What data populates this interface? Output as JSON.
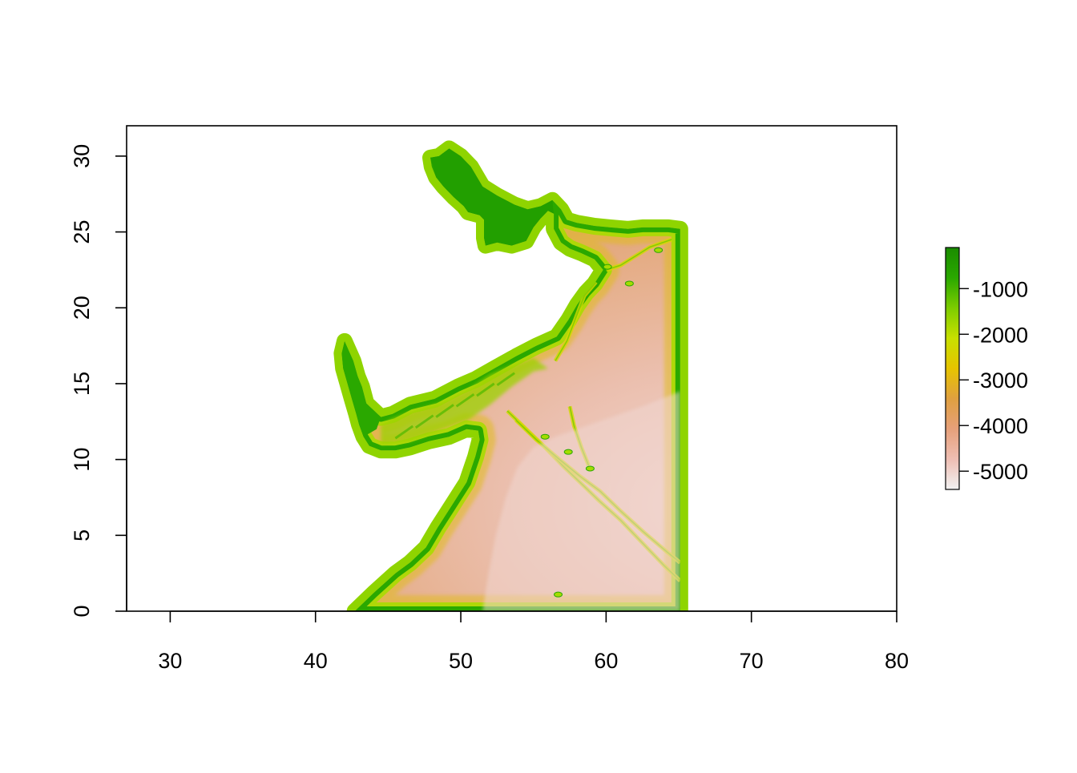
{
  "chart_data": {
    "type": "heatmap",
    "title": "",
    "xlabel": "",
    "ylabel": "",
    "xlim": [
      27,
      80
    ],
    "ylim": [
      0,
      32
    ],
    "x_ticks": [
      30,
      40,
      50,
      60,
      70,
      80
    ],
    "y_ticks": [
      0,
      5,
      10,
      15,
      20,
      25,
      30
    ],
    "raster_extent": {
      "xmin": 42.7,
      "xmax": 65.1,
      "ymin": 0,
      "ymax": 30.5
    },
    "legend": {
      "position": "right",
      "ticks": [
        -1000,
        -2000,
        -3000,
        -4000,
        -5000
      ],
      "range": [
        -5400,
        -100
      ],
      "palette": [
        "#f2f2f2",
        "#eebeb3",
        "#e6a07a",
        "#e0a040",
        "#e6c400",
        "#c8e000",
        "#7dcc00",
        "#2aa800",
        "#1a8c00"
      ]
    },
    "water_body_outline": [
      [
        42.7,
        0
      ],
      [
        44.0,
        1.2
      ],
      [
        45.5,
        2.5
      ],
      [
        46.5,
        3.2
      ],
      [
        47.6,
        4.2
      ],
      [
        48.4,
        5.5
      ],
      [
        49.4,
        7.0
      ],
      [
        50.4,
        8.5
      ],
      [
        51.0,
        10.2
      ],
      [
        51.3,
        11.3
      ],
      [
        51.2,
        11.9
      ],
      [
        50.4,
        12.0
      ],
      [
        49.2,
        11.5
      ],
      [
        47.8,
        11.2
      ],
      [
        46.5,
        10.8
      ],
      [
        45.5,
        10.6
      ],
      [
        44.5,
        10.6
      ],
      [
        43.7,
        10.9
      ],
      [
        43.3,
        11.5
      ],
      [
        43.0,
        12.3
      ],
      [
        42.8,
        13.0
      ],
      [
        42.5,
        14.0
      ],
      [
        42.2,
        15.0
      ],
      [
        41.9,
        16.0
      ],
      [
        41.8,
        17.0
      ],
      [
        42.0,
        17.8
      ],
      [
        42.6,
        16.5
      ],
      [
        42.9,
        15.5
      ],
      [
        43.2,
        14.8
      ],
      [
        43.5,
        13.7
      ],
      [
        44.5,
        12.8
      ],
      [
        45.3,
        13.0
      ],
      [
        46.5,
        13.6
      ],
      [
        48.2,
        14.0
      ],
      [
        49.8,
        14.8
      ],
      [
        51.0,
        15.3
      ],
      [
        52.3,
        16.0
      ],
      [
        53.8,
        16.8
      ],
      [
        55.2,
        17.5
      ],
      [
        56.6,
        18.1
      ],
      [
        57.4,
        19.2
      ],
      [
        58.0,
        20.2
      ],
      [
        58.6,
        21.0
      ],
      [
        59.2,
        21.6
      ],
      [
        59.8,
        22.5
      ],
      [
        59.2,
        23.2
      ],
      [
        58.3,
        23.6
      ],
      [
        57.5,
        23.9
      ],
      [
        56.9,
        24.3
      ],
      [
        56.4,
        25.2
      ],
      [
        56.4,
        26.2
      ],
      [
        56.0,
        26.4
      ],
      [
        55.5,
        25.9
      ],
      [
        55.0,
        25.3
      ],
      [
        54.5,
        24.4
      ],
      [
        53.5,
        24.1
      ],
      [
        52.5,
        24.3
      ],
      [
        51.7,
        24.1
      ],
      [
        51.6,
        24.6
      ],
      [
        51.6,
        25.8
      ],
      [
        51.3,
        26.1
      ],
      [
        50.5,
        26.3
      ],
      [
        50.2,
        26.7
      ],
      [
        49.5,
        27.3
      ],
      [
        48.8,
        28.0
      ],
      [
        48.3,
        28.6
      ],
      [
        48.0,
        29.3
      ],
      [
        47.9,
        29.9
      ],
      [
        48.5,
        30.0
      ],
      [
        49.2,
        30.5
      ],
      [
        50.0,
        30.0
      ],
      [
        50.7,
        29.3
      ],
      [
        51.5,
        28.0
      ],
      [
        52.5,
        27.4
      ],
      [
        53.7,
        26.8
      ],
      [
        54.6,
        26.5
      ],
      [
        55.5,
        26.7
      ],
      [
        56.3,
        27.1
      ],
      [
        56.9,
        26.5
      ],
      [
        57.3,
        25.8
      ],
      [
        58.0,
        25.6
      ],
      [
        59.2,
        25.4
      ],
      [
        60.3,
        25.3
      ],
      [
        61.5,
        25.2
      ],
      [
        62.5,
        25.3
      ],
      [
        63.5,
        25.3
      ],
      [
        64.3,
        25.3
      ],
      [
        65.1,
        25.2
      ],
      [
        65.1,
        0
      ]
    ],
    "basin_path": [
      [
        51.5,
        0
      ],
      [
        51.9,
        2.5
      ],
      [
        52.4,
        5
      ],
      [
        53.1,
        7.5
      ],
      [
        53.9,
        9.5
      ],
      [
        55.0,
        10.8
      ],
      [
        56.5,
        11.5
      ],
      [
        58.0,
        12.0
      ],
      [
        59.5,
        12.5
      ],
      [
        61.0,
        13.0
      ],
      [
        62.5,
        13.5
      ],
      [
        63.8,
        14.0
      ],
      [
        65.1,
        14.5
      ],
      [
        65.1,
        0
      ]
    ]
  }
}
